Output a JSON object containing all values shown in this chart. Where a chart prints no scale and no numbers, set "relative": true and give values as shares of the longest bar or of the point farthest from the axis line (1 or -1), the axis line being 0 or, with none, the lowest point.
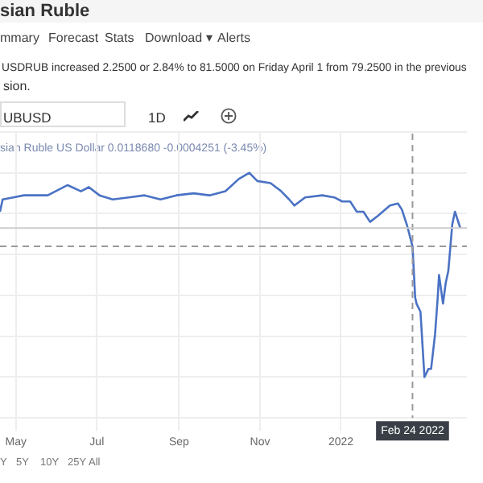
{
  "chart_data": {
    "type": "line",
    "relative": true,
    "title": "sian Ruble",
    "annotations": [
      "mmary",
      "Forecast",
      "Stats",
      "Download ▾",
      "Alerts",
      "USDRUB increased 2.2500 or 2.84% to 81.5000 on Friday April 1 from 79.2500 in the previous",
      "sion.",
      "UBUSD",
      "1D",
      "sian Ruble US Dollar 0.0118680 -0.0004251 (-3.45%)",
      "Y",
      "5Y",
      "10Y",
      "25Y",
      "All"
    ],
    "x": [
      "2021-04-19",
      "2021-04-21",
      "2021-04-29",
      "2021-05-07",
      "2021-05-25",
      "2021-06-09",
      "2021-06-19",
      "2021-06-25",
      "2021-07-03",
      "2021-07-13",
      "2021-07-25",
      "2021-08-06",
      "2021-08-18",
      "2021-08-30",
      "2021-09-12",
      "2021-09-24",
      "2021-10-06",
      "2021-10-16",
      "2021-10-24",
      "2021-10-30",
      "2021-11-09",
      "2021-11-17",
      "2021-11-23",
      "2021-11-27",
      "2021-12-05",
      "2021-12-18",
      "2021-12-27",
      "2022-01-02",
      "2022-01-08",
      "2022-01-13",
      "2022-01-18",
      "2022-01-23",
      "2022-01-29",
      "2022-02-07",
      "2022-02-13",
      "2022-02-16",
      "2022-02-20",
      "2022-02-24",
      "2022-02-26",
      "2022-02-27",
      "2022-03-02",
      "2022-03-05",
      "2022-03-08",
      "2022-03-10",
      "2022-03-13",
      "2022-03-15",
      "2022-03-16",
      "2022-03-19",
      "2022-03-21",
      "2022-03-23",
      "2022-03-26",
      "2022-03-28",
      "2022-04-01"
    ],
    "series": [
      {
        "color": "#4a72c4",
        "values": [
          0.81,
          0.87,
          0.88,
          0.89,
          0.89,
          0.94,
          0.91,
          0.93,
          0.89,
          0.87,
          0.88,
          0.89,
          0.87,
          0.89,
          0.9,
          0.89,
          0.91,
          0.97,
          1,
          0.96,
          0.95,
          0.91,
          0.87,
          0.84,
          0.88,
          0.89,
          0.88,
          0.86,
          0.86,
          0.81,
          0.81,
          0.76,
          0.79,
          0.84,
          0.85,
          0.82,
          0.74,
          0.64,
          0.39,
          0.36,
          0.32,
          0,
          0.04,
          0.04,
          0.21,
          0.39,
          0.5,
          0.36,
          0.46,
          0.52,
          0.75,
          0.81,
          0.73
        ]
      }
    ],
    "xlim": [
      "2021-04-19",
      "2022-04-06"
    ],
    "xticks": [
      {
        "value": "2021-05-01",
        "label": "May"
      },
      {
        "value": "2021-07-01",
        "label": "Jul"
      },
      {
        "value": "2021-09-01",
        "label": "Sep"
      },
      {
        "value": "2021-11-01",
        "label": "Nov"
      },
      {
        "value": "2022-01-01",
        "label": "2022"
      }
    ],
    "ref_lines": [
      {
        "axis": "x",
        "value": "2022-02-24",
        "label": "Feb 24 2022",
        "color": "#999999",
        "line_style": "dashed"
      },
      {
        "axis": "y",
        "value": 0.64,
        "color": "#999999",
        "line_style": "dashed"
      },
      {
        "axis": "y",
        "value": 0.73,
        "color": "#cccccc",
        "line_style": "solid"
      }
    ],
    "grid": true,
    "legend": false,
    "marker": "none",
    "line_style": "solid"
  }
}
